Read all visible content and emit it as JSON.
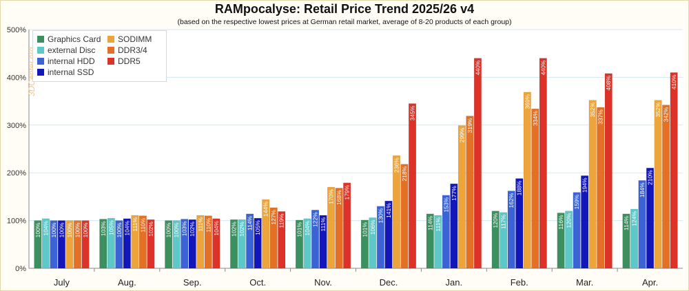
{
  "chart_data": {
    "type": "bar",
    "title": "RAMpocalyse: Retail Price Trend 2025/26 v4",
    "subtitle": "(based on the respective lowest prices at German retail market, average of 8-20 products of each group)",
    "watermark": "3DCenter.org",
    "ylim": [
      0,
      500
    ],
    "yticks": [
      0,
      100,
      200,
      300,
      400,
      500
    ],
    "ytick_labels": [
      "0%",
      "100%",
      "200%",
      "300%",
      "400%",
      "500%"
    ],
    "grid": true,
    "legend_position": "top-left",
    "categories": [
      "July",
      "Aug.",
      "Sep.",
      "Oct.",
      "Nov.",
      "Dec.",
      "Jan.",
      "Feb.",
      "Mar.",
      "Apr."
    ],
    "series": [
      {
        "name": "Graphics Card",
        "color": "#3c8f5e",
        "values": [
          100,
          103,
          100,
          102,
          101,
          101,
          114,
          120,
          116,
          114
        ],
        "labels": [
          "100%",
          "103%",
          "100%",
          "102%",
          "101%",
          "101%",
          "114%",
          "120%",
          "116%",
          "114%"
        ]
      },
      {
        "name": "external Disc",
        "color": "#5ec8c8",
        "values": [
          104,
          105,
          100,
          102,
          104,
          106,
          111,
          117,
          120,
          124
        ],
        "labels": [
          "104%",
          "105%",
          "100%",
          "102%",
          "104%",
          "106%",
          "111%",
          "117%",
          "120%",
          "124%"
        ]
      },
      {
        "name": "internal HDD",
        "color": "#3b63d6",
        "values": [
          100,
          100,
          103,
          114,
          122,
          130,
          153,
          162,
          159,
          184
        ],
        "labels": [
          "100%",
          "100%",
          "103%",
          "114%",
          "122%",
          "130%",
          "153%",
          "162%",
          "159%",
          "184%"
        ]
      },
      {
        "name": "internal SSD",
        "color": "#1316b8",
        "values": [
          100,
          104,
          102,
          105,
          111,
          141,
          177,
          188,
          194,
          210
        ],
        "labels": [
          "100%",
          "104%",
          "102%",
          "105%",
          "111%",
          "141%",
          "177%",
          "188%",
          "194%",
          "210%"
        ]
      },
      {
        "name": "SODIMM",
        "color": "#eda53b",
        "values": [
          100,
          111,
          111,
          144,
          170,
          236,
          299,
          369,
          352,
          352
        ],
        "labels": [
          "100%",
          "111%",
          "111%",
          "144%",
          "170%",
          "236%",
          "299%",
          "369%",
          "352%",
          "352%"
        ]
      },
      {
        "name": "DDR3/4",
        "color": "#e37024",
        "values": [
          100,
          110,
          110,
          127,
          168,
          218,
          319,
          334,
          337,
          342
        ],
        "labels": [
          "100%",
          "110%",
          "110%",
          "127%",
          "168%",
          "218%",
          "319%",
          "334%",
          "337%",
          "342%"
        ]
      },
      {
        "name": "DDR5",
        "color": "#dc3228",
        "values": [
          100,
          102,
          104,
          119,
          179,
          345,
          440,
          440,
          408,
          410
        ],
        "labels": [
          "100%",
          "102%",
          "104%",
          "119%",
          "179%",
          "345%",
          "440%",
          "440%",
          "408%",
          "410%"
        ]
      }
    ]
  }
}
